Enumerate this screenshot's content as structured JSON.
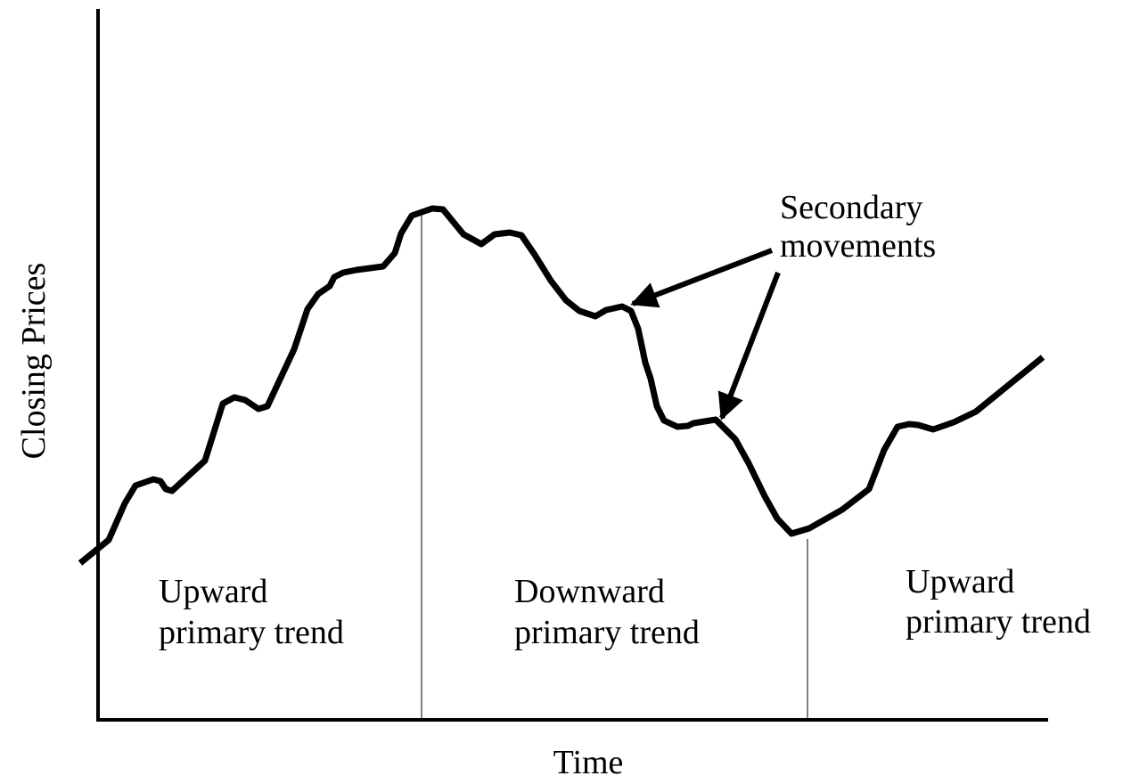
{
  "axes": {
    "y_label": "Closing Prices",
    "x_label": "Time"
  },
  "annotation": {
    "lines": [
      "Secondary",
      "movements"
    ]
  },
  "regions": [
    {
      "lines": [
        "Upward",
        "primary trend"
      ]
    },
    {
      "lines": [
        "Downward",
        "primary trend"
      ]
    },
    {
      "lines": [
        "Upward",
        "primary trend"
      ]
    }
  ]
}
